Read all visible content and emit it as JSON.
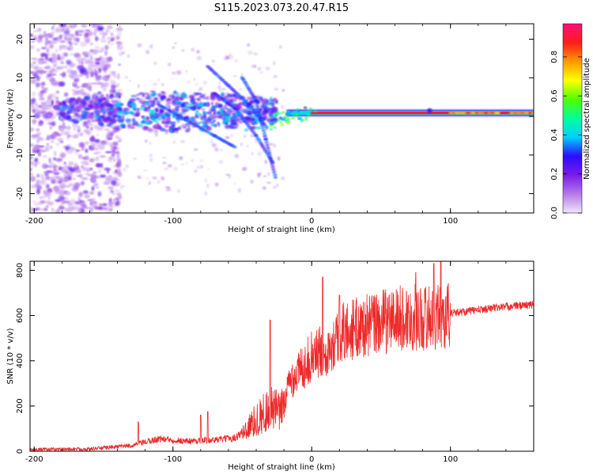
{
  "title": "S115.2023.073.20.47.R15",
  "chart_data": [
    {
      "type": "heatmap",
      "xlabel": "Height of straight line (km)",
      "ylabel": "Frequency (Hz)",
      "xlim": [
        -203,
        160
      ],
      "ylim": [
        -25,
        24
      ],
      "x_ticks": [
        -200,
        -100,
        0,
        100
      ],
      "y_ticks": [
        -20,
        -10,
        0,
        10,
        20
      ],
      "colorbar": {
        "label": "Normalized spectral amplitude",
        "range": [
          0,
          0.97
        ],
        "ticks": [
          0.0,
          0.2,
          0.4,
          0.6,
          0.8
        ],
        "colormap": [
          "#f0e6fa",
          "#b47ae8",
          "#7a1ce8",
          "#2b0cff",
          "#00d0ff",
          "#00ff9c",
          "#50ff00",
          "#ffff00",
          "#ff9900",
          "#ff1c1c",
          "#ff0f78"
        ]
      },
      "features": [
        {
          "name": "carrier",
          "x_range": [
            -20,
            160
          ],
          "freq": 0.8,
          "amplitude": 0.85
        },
        {
          "name": "diffuse-band",
          "x_range": [
            -180,
            -30
          ],
          "freq": 2.0,
          "amplitude": 0.3
        },
        {
          "name": "arc-1",
          "x": [
            -75,
            -45,
            -28
          ],
          "y": [
            13,
            4,
            -3
          ],
          "amplitude": 0.3
        },
        {
          "name": "arc-2",
          "x": [
            -48,
            -35,
            -25
          ],
          "y": [
            10,
            2,
            -16
          ],
          "amplitude": 0.25
        }
      ]
    },
    {
      "type": "line",
      "xlabel": "Height of straight line (km)",
      "ylabel": "SNR (10 * v/v)",
      "xlim": [
        -203,
        160
      ],
      "ylim": [
        0,
        840
      ],
      "x_ticks": [
        -200,
        -100,
        0,
        100
      ],
      "y_ticks": [
        0,
        200,
        400,
        600,
        800
      ],
      "color": "#ee2a2a",
      "trend_x": [
        -203,
        -160,
        -130,
        -110,
        -90,
        -70,
        -55,
        -45,
        -38,
        -30,
        -22,
        -15,
        -8,
        0,
        10,
        20,
        30,
        40,
        50,
        60,
        70,
        80,
        90,
        95,
        100,
        120,
        140,
        160
      ],
      "trend_y": [
        8,
        10,
        25,
        55,
        45,
        50,
        60,
        110,
        150,
        190,
        170,
        320,
        360,
        420,
        450,
        520,
        540,
        555,
        570,
        585,
        590,
        590,
        600,
        590,
        610,
        625,
        640,
        648
      ],
      "spikes_x": [
        -125,
        -80,
        -75,
        -30,
        8,
        12,
        20,
        75,
        88,
        93
      ],
      "spikes_y": [
        130,
        160,
        175,
        580,
        770,
        520,
        690,
        790,
        830,
        850
      ]
    }
  ]
}
